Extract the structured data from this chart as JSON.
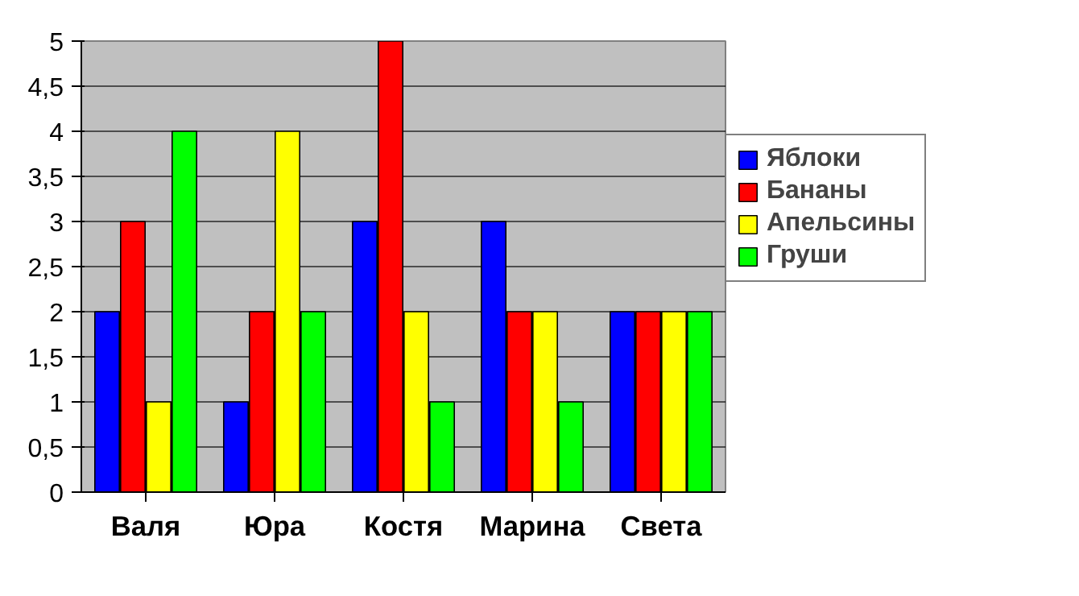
{
  "chart_data": {
    "type": "bar",
    "categories": [
      "Валя",
      "Юра",
      "Костя",
      "Марина",
      "Света"
    ],
    "series": [
      {
        "name": "Яблоки",
        "color": "#0000ff",
        "values": [
          2,
          1,
          3,
          3,
          2
        ]
      },
      {
        "name": "Бананы",
        "color": "#ff0000",
        "values": [
          3,
          2,
          5,
          2,
          2
        ]
      },
      {
        "name": "Апельсины",
        "color": "#ffff00",
        "values": [
          1,
          4,
          2,
          2,
          2
        ]
      },
      {
        "name": "Груши",
        "color": "#00ff00",
        "values": [
          4,
          2,
          1,
          1,
          2
        ]
      }
    ],
    "ylim": [
      0,
      5
    ],
    "yticks": [
      0,
      {
        "value": 0.5,
        "label": "0,5"
      },
      1,
      {
        "value": 1.5,
        "label": "1,5"
      },
      2,
      {
        "value": 2.5,
        "label": "2,5"
      },
      3,
      {
        "value": 3.5,
        "label": "3,5"
      },
      4,
      {
        "value": 4.5,
        "label": "4,5"
      },
      5
    ],
    "grid": "y",
    "legend": "right"
  }
}
